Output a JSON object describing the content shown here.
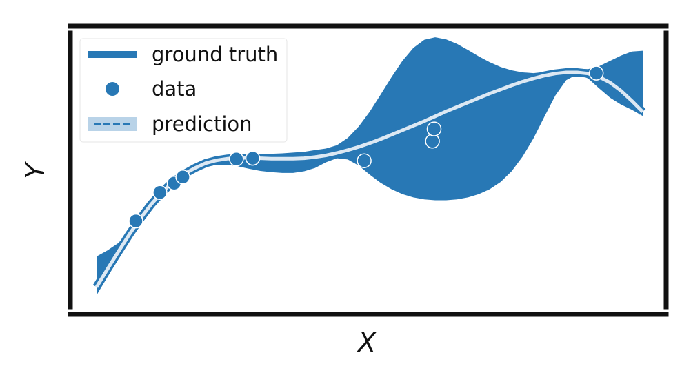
{
  "chart_data": {
    "type": "line",
    "title": "",
    "xlabel": "X",
    "ylabel": "Y",
    "xlim": [
      0,
      10
    ],
    "ylim": [
      -3.2,
      3.4
    ],
    "grid": false,
    "legend_position": "top-left",
    "x_ticks": [],
    "y_ticks": [],
    "colors": {
      "ground_truth": "#2878b5",
      "data": "#2878b5",
      "prediction_line": "#dce8f3",
      "band": "#2878b5",
      "frame": "#111111"
    },
    "legend": [
      {
        "label": "ground truth",
        "kind": "line"
      },
      {
        "label": "data",
        "kind": "marker"
      },
      {
        "label": "prediction",
        "kind": "band-line"
      }
    ],
    "ground_truth": {
      "x": [
        0.0,
        0.2,
        0.4,
        0.6,
        0.8,
        1.0,
        1.2,
        1.4,
        1.6,
        1.8,
        2.0,
        2.2,
        2.4,
        2.6,
        2.8,
        3.0,
        3.2,
        3.4,
        3.6,
        3.8,
        4.0,
        4.2,
        4.4,
        4.6,
        4.8,
        5.0,
        5.2,
        5.4,
        5.6,
        5.8,
        6.0,
        6.2,
        6.4,
        6.6,
        6.8,
        7.0,
        7.2,
        7.4,
        7.6,
        7.8,
        8.0,
        8.2,
        8.4,
        8.6,
        8.8,
        9.0,
        9.2,
        9.4,
        9.6,
        9.8,
        10.0
      ],
      "y": [
        -2.8,
        -2.36,
        -1.93,
        -1.51,
        -1.12,
        -0.77,
        -0.47,
        -0.22,
        -0.03,
        0.12,
        0.24,
        0.31,
        0.35,
        0.37,
        0.37,
        0.36,
        0.35,
        0.35,
        0.35,
        0.36,
        0.39,
        0.43,
        0.49,
        0.56,
        0.64,
        0.73,
        0.83,
        0.94,
        1.05,
        1.16,
        1.27,
        1.39,
        1.51,
        1.62,
        1.73,
        1.84,
        1.95,
        2.05,
        2.15,
        2.24,
        2.32,
        2.39,
        2.44,
        2.47,
        2.47,
        2.44,
        2.36,
        2.22,
        2.02,
        1.77,
        1.5
      ]
    },
    "prediction": {
      "x": [
        0.0,
        0.2,
        0.4,
        0.6,
        0.8,
        1.0,
        1.2,
        1.4,
        1.6,
        1.8,
        2.0,
        2.2,
        2.4,
        2.6,
        2.8,
        3.0,
        3.2,
        3.4,
        3.6,
        3.8,
        4.0,
        4.2,
        4.4,
        4.6,
        4.8,
        5.0,
        5.2,
        5.4,
        5.6,
        5.8,
        6.0,
        6.2,
        6.4,
        6.6,
        6.8,
        7.0,
        7.2,
        7.4,
        7.6,
        7.8,
        8.0,
        8.2,
        8.4,
        8.6,
        8.8,
        9.0,
        9.2,
        9.4,
        9.6,
        9.8,
        10.0
      ],
      "mean": [
        -2.8,
        -2.36,
        -1.93,
        -1.51,
        -1.12,
        -0.77,
        -0.47,
        -0.22,
        -0.03,
        0.12,
        0.24,
        0.31,
        0.35,
        0.37,
        0.37,
        0.36,
        0.35,
        0.35,
        0.35,
        0.36,
        0.39,
        0.43,
        0.49,
        0.56,
        0.64,
        0.73,
        0.83,
        0.94,
        1.05,
        1.16,
        1.27,
        1.39,
        1.51,
        1.62,
        1.73,
        1.84,
        1.95,
        2.05,
        2.15,
        2.24,
        2.32,
        2.39,
        2.44,
        2.47,
        2.47,
        2.44,
        2.36,
        2.22,
        2.02,
        1.77,
        1.5
      ],
      "lower": [
        -3.0,
        -2.55,
        -2.1,
        -1.62,
        -1.2,
        -0.83,
        -0.52,
        -0.28,
        -0.1,
        0.04,
        0.15,
        0.2,
        0.2,
        0.16,
        0.1,
        0.05,
        0.02,
        0.0,
        0.0,
        0.04,
        0.12,
        0.26,
        0.36,
        0.33,
        0.18,
        -0.04,
        -0.24,
        -0.4,
        -0.52,
        -0.6,
        -0.65,
        -0.67,
        -0.67,
        -0.65,
        -0.6,
        -0.52,
        -0.4,
        -0.22,
        0.04,
        0.4,
        0.85,
        1.38,
        1.9,
        2.28,
        2.42,
        2.32,
        2.08,
        1.85,
        1.68,
        1.55,
        1.4
      ],
      "upper": [
        -2.05,
        -1.9,
        -1.72,
        -1.42,
        -1.06,
        -0.72,
        -0.43,
        -0.17,
        0.03,
        0.19,
        0.31,
        0.39,
        0.44,
        0.46,
        0.47,
        0.47,
        0.47,
        0.48,
        0.5,
        0.52,
        0.56,
        0.6,
        0.68,
        0.86,
        1.14,
        1.5,
        1.92,
        2.35,
        2.75,
        3.07,
        3.27,
        3.33,
        3.28,
        3.17,
        3.02,
        2.86,
        2.72,
        2.6,
        2.52,
        2.47,
        2.45,
        2.48,
        2.53,
        2.56,
        2.56,
        2.55,
        2.62,
        2.75,
        2.88,
        2.98,
        3.0
      ]
    },
    "data_points": {
      "x": [
        0.72,
        1.16,
        1.42,
        1.58,
        2.56,
        2.86,
        4.9,
        6.15,
        6.18,
        9.15
      ],
      "y": [
        -1.18,
        -0.48,
        -0.25,
        -0.1,
        0.34,
        0.36,
        0.3,
        0.78,
        1.08,
        2.45
      ]
    }
  }
}
